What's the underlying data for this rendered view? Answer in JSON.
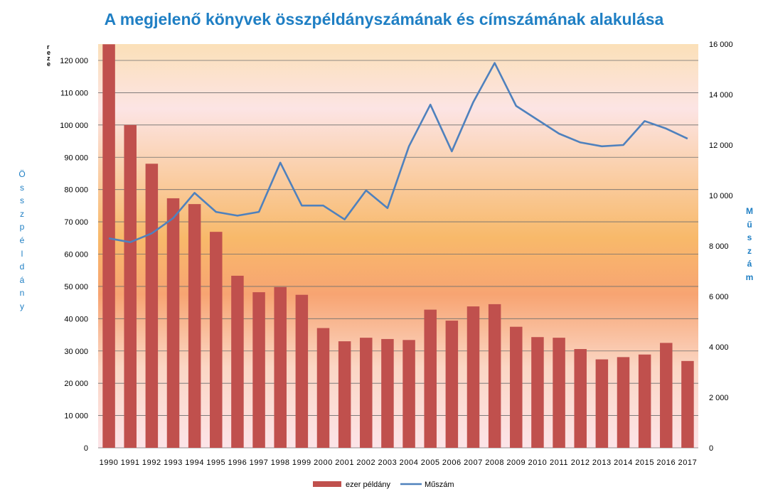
{
  "chart_data": {
    "type": "bar",
    "title": "A megjelenő  könyvek összpéldányszámának és címszámának alakulása",
    "ylabel_left": "Összpéldány",
    "ylabel_right": "Műszám",
    "top_left_fragment": "r\ne\nz\ne",
    "categories": [
      "1990",
      "1991",
      "1992",
      "1993",
      "1994",
      "1995",
      "1996",
      "1997",
      "1998",
      "1999",
      "2000",
      "2001",
      "2002",
      "2003",
      "2004",
      "2005",
      "2006",
      "2007",
      "2008",
      "2009",
      "2010",
      "2011",
      "2012",
      "2013",
      "2014",
      "2015",
      "2016",
      "2017"
    ],
    "series": [
      {
        "name": "ezer példány",
        "type": "bar",
        "axis": "left",
        "color": "#c0504d",
        "values": [
          125000,
          100000,
          88000,
          77300,
          75500,
          66900,
          53300,
          48200,
          49800,
          47400,
          37100,
          33000,
          34100,
          33700,
          33400,
          42800,
          39400,
          43800,
          44500,
          37500,
          34300,
          34100,
          30600,
          27400,
          28100,
          28900,
          32500,
          26900
        ]
      },
      {
        "name": "Műszám",
        "type": "line",
        "axis": "right",
        "color": "#4f81bd",
        "values": [
          8300,
          8150,
          8500,
          9100,
          10100,
          9350,
          9200,
          9350,
          11300,
          9600,
          9600,
          9050,
          10200,
          9500,
          11950,
          13600,
          11750,
          13700,
          15250,
          13550,
          13000,
          12450,
          12100,
          11950,
          12000,
          12950,
          12650,
          12250
        ]
      }
    ],
    "ylim_left": [
      0,
      125000
    ],
    "ylim_right": [
      0,
      16000
    ],
    "yticks_left": [
      "0",
      "10 000",
      "20 000",
      "30 000",
      "40 000",
      "50 000",
      "60 000",
      "70 000",
      "80 000",
      "90 000",
      "100 000",
      "110 000",
      "120 000"
    ],
    "yticks_right": [
      "0",
      "2 000",
      "4 000",
      "6 000",
      "8 000",
      "10 000",
      "12 000",
      "14 000",
      "16 000"
    ],
    "grid": true,
    "legend_position": "bottom",
    "colors": {
      "title": "#1f7fc4",
      "bar": "#c0504d",
      "line": "#4f81bd",
      "grid": "#000000"
    }
  }
}
